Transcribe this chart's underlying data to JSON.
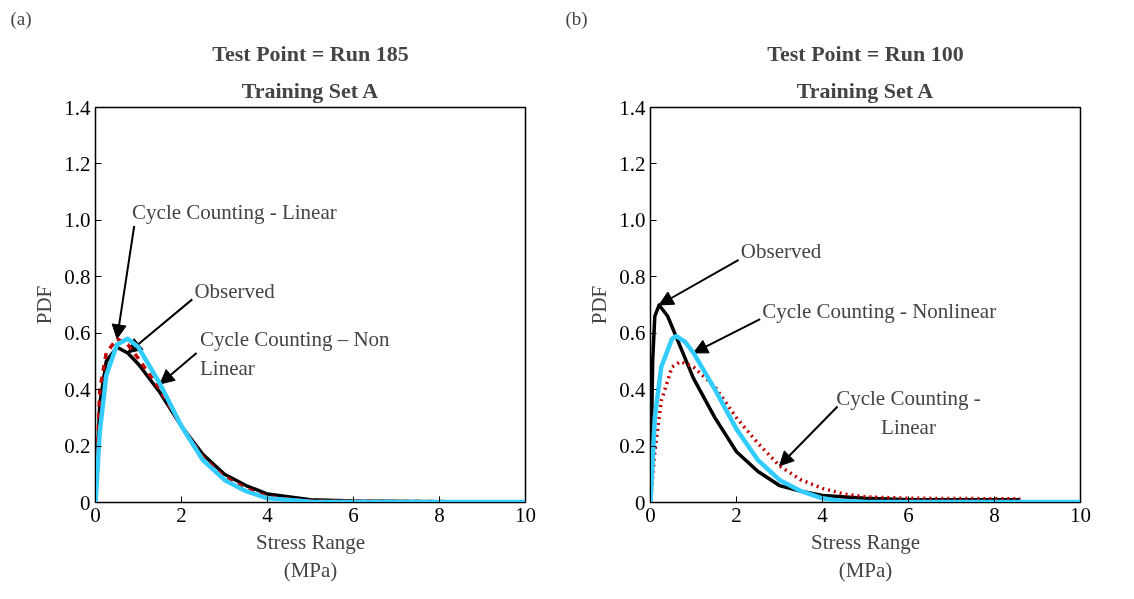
{
  "chart_data": [
    {
      "type": "line",
      "title": "Test Point = Run 185",
      "subtitle": "Training Set A",
      "xlabel": "Stress Range (MPa)",
      "ylabel": "PDF",
      "xlim": [
        0,
        10
      ],
      "ylim": [
        0,
        1.4
      ],
      "xticks": [
        0,
        2,
        4,
        6,
        8,
        10
      ],
      "yticks": [
        0,
        0.2,
        0.4,
        0.6,
        0.8,
        {
          "value": 1,
          "label": "1.0"
        },
        1.2,
        1.4
      ],
      "grid": false,
      "marker": "none",
      "annotations": [
        "(a)",
        {
          "text": "Cycle Counting - Linear",
          "x": 0.5,
          "y": 0.58
        },
        {
          "text": "Observed",
          "x": 0.75,
          "y": 0.53
        },
        {
          "text": "Cycle Counting – Non Linear",
          "x": 1.5,
          "y": 0.42
        }
      ],
      "series": [
        {
          "color": "#000000",
          "line_style": "solid",
          "x": [
            0,
            0.1,
            0.25,
            0.5,
            0.75,
            1,
            1.5,
            2,
            2.5,
            3,
            3.5,
            4,
            5,
            6,
            8,
            10
          ],
          "values": [
            0,
            0.35,
            0.5,
            0.55,
            0.53,
            0.49,
            0.39,
            0.27,
            0.17,
            0.1,
            0.06,
            0.03,
            0.01,
            0.005,
            0.003,
            0.002
          ]
        },
        {
          "color": "#c00000",
          "line_style": "dashed",
          "x": [
            0,
            0.1,
            0.25,
            0.5,
            0.75,
            1,
            1.5,
            2,
            2.5,
            3,
            3.5,
            4,
            5,
            10
          ],
          "values": [
            0,
            0.4,
            0.53,
            0.58,
            0.56,
            0.51,
            0.4,
            0.27,
            0.16,
            0.09,
            0.05,
            0.02,
            0.005,
            0.002
          ]
        },
        {
          "color": "#33ccff",
          "line_style": "solid",
          "x": [
            0,
            0.1,
            0.25,
            0.5,
            0.75,
            1,
            1.5,
            2,
            2.5,
            3,
            3.5,
            4,
            5,
            6,
            10
          ],
          "values": [
            0,
            0.25,
            0.45,
            0.56,
            0.58,
            0.55,
            0.42,
            0.27,
            0.15,
            0.08,
            0.04,
            0.015,
            0.003,
            0.002,
            0.002
          ]
        }
      ]
    },
    {
      "type": "line",
      "title": "Test Point = Run 100",
      "subtitle": "Training Set A",
      "xlabel": "Stress Range (MPa)",
      "ylabel": "PDF",
      "xlim": [
        0,
        10
      ],
      "ylim": [
        0,
        1.4
      ],
      "xticks": [
        0,
        2,
        4,
        6,
        8,
        10
      ],
      "yticks": [
        0,
        0.2,
        0.4,
        0.6,
        0.8,
        {
          "value": 1,
          "label": "1.0"
        },
        1.2,
        1.4
      ],
      "grid": false,
      "marker": "none",
      "annotations": [
        "(b)",
        {
          "text": "Observed",
          "x": 0.2,
          "y": 0.7
        },
        {
          "text": "Cycle Counting - Nonlinear",
          "x": 1,
          "y": 0.53
        },
        {
          "text": "Cycle Counting - Linear",
          "x": 3,
          "y": 0.13
        }
      ],
      "series": [
        {
          "color": "#000000",
          "line_style": "solid",
          "x": [
            0,
            0.05,
            0.1,
            0.2,
            0.4,
            0.7,
            1,
            1.5,
            2,
            2.5,
            3,
            3.5,
            4,
            5,
            6,
            8.6
          ],
          "values": [
            0,
            0.5,
            0.66,
            0.7,
            0.66,
            0.55,
            0.44,
            0.3,
            0.18,
            0.11,
            0.06,
            0.04,
            0.025,
            0.015,
            0.01,
            0.01
          ]
        },
        {
          "color": "#c00000",
          "line_style": "dotted",
          "x": [
            0,
            0.1,
            0.25,
            0.5,
            0.7,
            1,
            1.5,
            2,
            2.5,
            3,
            3.5,
            4,
            4.5,
            5,
            6,
            8.6
          ],
          "values": [
            0,
            0.18,
            0.36,
            0.48,
            0.5,
            0.48,
            0.41,
            0.3,
            0.21,
            0.13,
            0.08,
            0.05,
            0.03,
            0.02,
            0.015,
            0.013
          ]
        },
        {
          "color": "#33ccff",
          "line_style": "solid",
          "x": [
            0,
            0.1,
            0.25,
            0.5,
            0.6,
            0.8,
            1,
            1.5,
            2,
            2.5,
            3,
            3.5,
            4,
            4.5,
            5,
            10
          ],
          "values": [
            0,
            0.3,
            0.48,
            0.58,
            0.59,
            0.57,
            0.53,
            0.4,
            0.26,
            0.15,
            0.08,
            0.04,
            0.015,
            0.004,
            0.002,
            0.002
          ]
        }
      ]
    }
  ]
}
